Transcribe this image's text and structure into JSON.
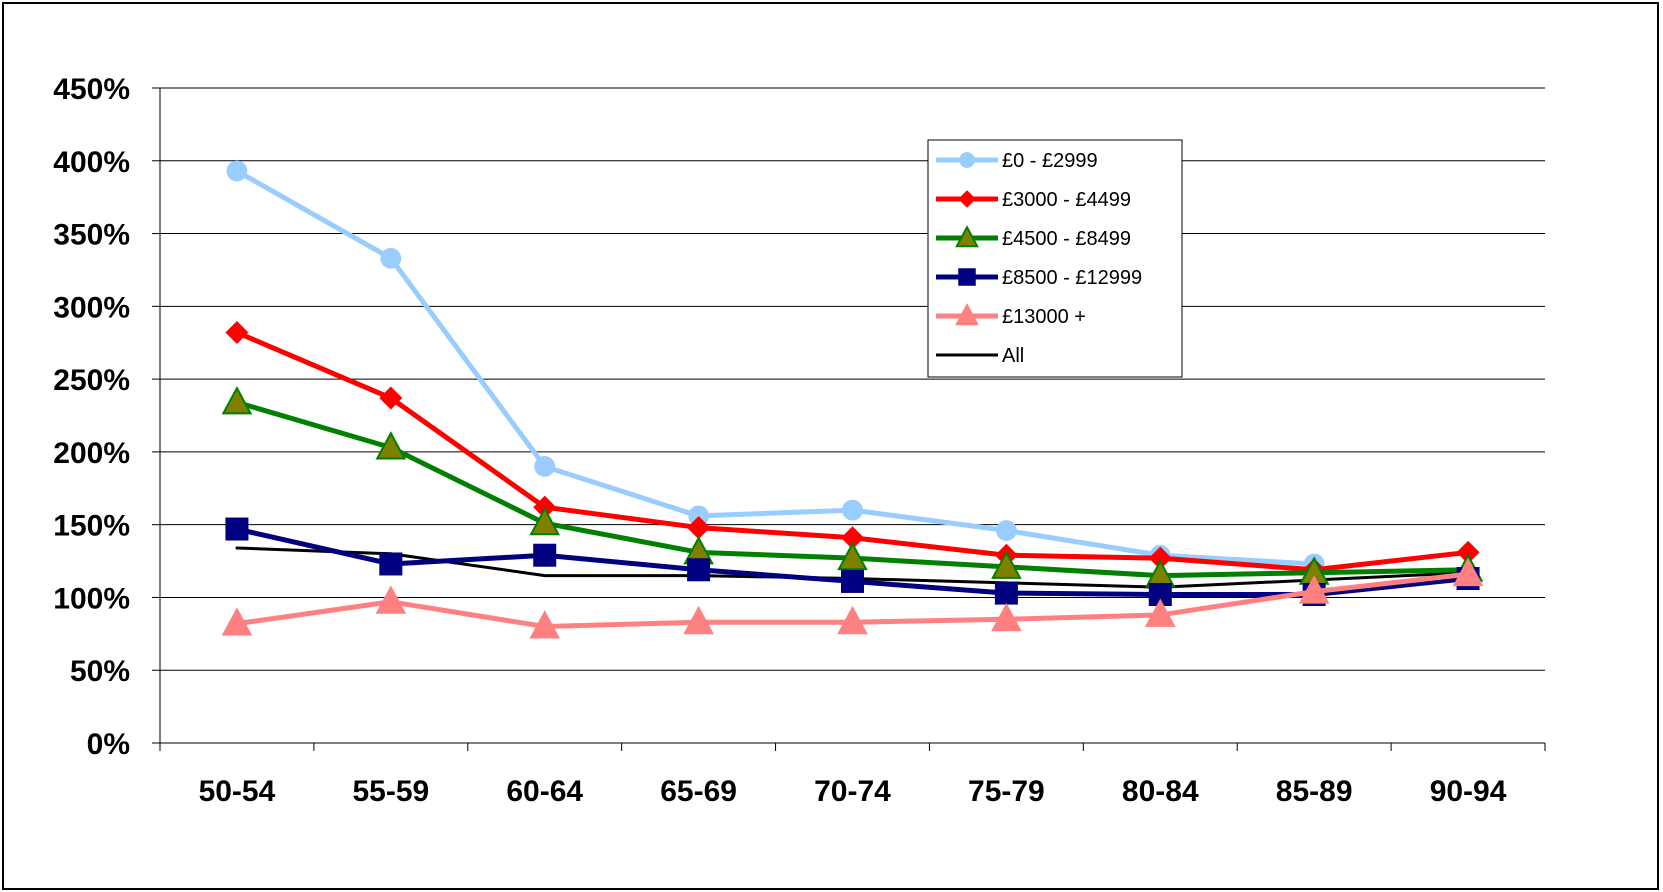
{
  "chart_data": {
    "type": "line",
    "title": "",
    "xlabel": "",
    "ylabel": "",
    "categories": [
      "50-54",
      "55-59",
      "60-64",
      "65-69",
      "70-74",
      "75-79",
      "80-84",
      "85-89",
      "90-94"
    ],
    "ylim": [
      0,
      4.5
    ],
    "y_ticks": [
      0,
      0.5,
      1.0,
      1.5,
      2.0,
      2.5,
      3.0,
      3.5,
      4.0,
      4.5
    ],
    "y_tick_labels": [
      "0%",
      "50%",
      "100%",
      "150%",
      "200%",
      "250%",
      "300%",
      "350%",
      "400%",
      "450%"
    ],
    "grid": "horizontal",
    "legend_position": "top-right",
    "series": [
      {
        "name": "£0 - £2999",
        "color": "#99ccff",
        "marker": "circle",
        "values": [
          3.93,
          3.33,
          1.9,
          1.56,
          1.6,
          1.46,
          1.29,
          1.23,
          null
        ]
      },
      {
        "name": "£3000 - £4499",
        "color": "#ff0000",
        "marker": "diamond",
        "values": [
          2.82,
          2.37,
          1.62,
          1.48,
          1.41,
          1.29,
          1.27,
          1.19,
          1.31
        ]
      },
      {
        "name": "£4500 - £8499",
        "color": "#008000",
        "marker": "triangle",
        "marker_fill": "#808000",
        "values": [
          2.34,
          2.03,
          1.51,
          1.31,
          1.27,
          1.21,
          1.15,
          1.17,
          1.19
        ]
      },
      {
        "name": "£8500 - £12999",
        "color": "#000080",
        "marker": "square",
        "values": [
          1.47,
          1.23,
          1.29,
          1.19,
          1.11,
          1.03,
          1.02,
          1.02,
          1.13
        ]
      },
      {
        "name": "£13000 +",
        "color": "#ff8080",
        "marker": "triangle",
        "values": [
          0.82,
          0.97,
          0.8,
          0.83,
          0.83,
          0.85,
          0.88,
          1.04,
          1.16
        ]
      },
      {
        "name": "All",
        "color": "#000000",
        "marker": "none",
        "values": [
          1.34,
          1.3,
          1.15,
          1.15,
          1.13,
          1.1,
          1.07,
          1.12,
          1.17
        ]
      }
    ]
  }
}
